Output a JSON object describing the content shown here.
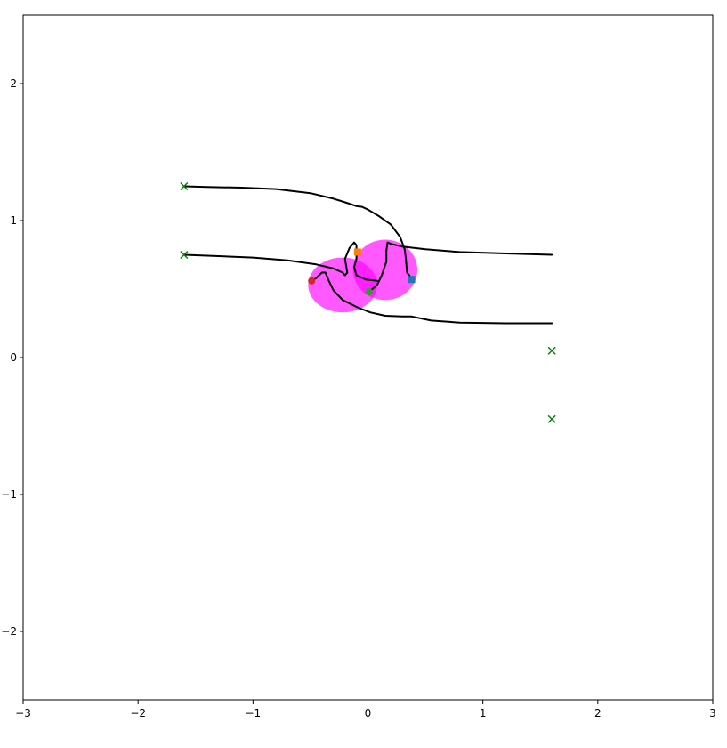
{
  "chart_data": {
    "type": "scatter",
    "xlim": [
      -3,
      3
    ],
    "ylim": [
      -2.5,
      2.5
    ],
    "xticks": [
      -3,
      -2,
      -1,
      0,
      1,
      2,
      3
    ],
    "yticks": [
      -2,
      -1,
      0,
      1,
      2
    ],
    "xtick_labels": [
      "−3",
      "−2",
      "−1",
      "0",
      "1",
      "2",
      "3"
    ],
    "ytick_labels": [
      "−2",
      "−1",
      "0",
      "1",
      "2"
    ],
    "grid": false,
    "colors": {
      "path": "#000000",
      "ellipse": "#ff00ff",
      "target_marker": "#008000",
      "blue_square": "#1f77b4",
      "orange_square": "#ff7f0e",
      "green_dot": "#2ca02c",
      "red_dot": "#d62728"
    },
    "ellipses": [
      {
        "cx": -0.22,
        "cy": 0.53,
        "rx": 0.3,
        "ry": 0.2
      },
      {
        "cx": 0.15,
        "cy": 0.64,
        "rx": 0.28,
        "ry": 0.22
      }
    ],
    "paths": [
      {
        "points": [
          [
            -1.6,
            1.25
          ],
          [
            -1.4,
            1.245
          ],
          [
            -1.1,
            1.24
          ],
          [
            -0.8,
            1.23
          ],
          [
            -0.5,
            1.2
          ],
          [
            -0.3,
            1.16
          ],
          [
            -0.15,
            1.12
          ],
          [
            -0.1,
            1.105
          ],
          [
            -0.05,
            1.1
          ],
          [
            0.0,
            1.08
          ],
          [
            0.1,
            1.03
          ],
          [
            0.2,
            0.97
          ],
          [
            0.28,
            0.88
          ],
          [
            0.32,
            0.79
          ],
          [
            0.33,
            0.72
          ],
          [
            0.34,
            0.62
          ],
          [
            0.36,
            0.6
          ],
          [
            0.38,
            0.57
          ]
        ]
      },
      {
        "points": [
          [
            -1.6,
            0.75
          ],
          [
            -1.3,
            0.74
          ],
          [
            -1.0,
            0.73
          ],
          [
            -0.7,
            0.71
          ],
          [
            -0.45,
            0.68
          ],
          [
            -0.3,
            0.65
          ],
          [
            -0.22,
            0.62
          ],
          [
            -0.2,
            0.6
          ],
          [
            -0.18,
            0.62
          ],
          [
            -0.2,
            0.72
          ],
          [
            -0.16,
            0.8
          ],
          [
            -0.12,
            0.84
          ],
          [
            -0.1,
            0.82
          ],
          [
            -0.1,
            0.72
          ],
          [
            -0.12,
            0.66
          ],
          [
            -0.1,
            0.6
          ],
          [
            -0.02,
            0.57
          ],
          [
            0.08,
            0.56
          ]
        ]
      },
      {
        "points": [
          [
            -0.49,
            0.56
          ],
          [
            -0.45,
            0.58
          ],
          [
            -0.4,
            0.62
          ],
          [
            -0.37,
            0.62
          ],
          [
            -0.34,
            0.56
          ],
          [
            -0.3,
            0.49
          ],
          [
            -0.22,
            0.42
          ],
          [
            -0.1,
            0.37
          ],
          [
            0.02,
            0.33
          ],
          [
            0.15,
            0.305
          ],
          [
            0.3,
            0.3
          ],
          [
            0.38,
            0.3
          ],
          [
            0.55,
            0.27
          ],
          [
            0.8,
            0.255
          ],
          [
            1.2,
            0.25
          ],
          [
            1.6,
            0.25
          ]
        ]
      },
      {
        "points": [
          [
            0.01,
            0.48
          ],
          [
            0.08,
            0.53
          ],
          [
            0.12,
            0.6
          ],
          [
            0.16,
            0.7
          ],
          [
            0.16,
            0.78
          ],
          [
            0.17,
            0.84
          ],
          [
            0.2,
            0.83
          ],
          [
            0.3,
            0.81
          ],
          [
            0.5,
            0.79
          ],
          [
            0.8,
            0.77
          ],
          [
            1.2,
            0.76
          ],
          [
            1.6,
            0.75
          ]
        ]
      }
    ],
    "target_markers": [
      [
        -1.6,
        1.25
      ],
      [
        -1.6,
        0.75
      ],
      [
        1.6,
        0.05
      ],
      [
        1.6,
        -0.45
      ]
    ],
    "square_markers": [
      {
        "x": 0.38,
        "y": 0.57,
        "color": "#1f77b4"
      },
      {
        "x": -0.09,
        "y": 0.77,
        "color": "#ff7f0e"
      }
    ],
    "dot_markers": [
      {
        "x": 0.01,
        "y": 0.48,
        "color": "#2ca02c"
      },
      {
        "x": -0.49,
        "y": 0.56,
        "color": "#d62728"
      }
    ]
  }
}
